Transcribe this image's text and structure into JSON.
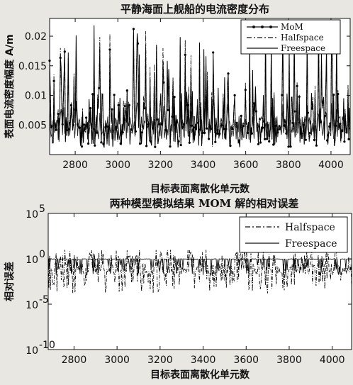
{
  "colors": {
    "background": "#e9e7e2",
    "plot_bg": "#ffffff",
    "ink": "#111111"
  },
  "chart_data": [
    {
      "type": "line",
      "title": "平静海面上舰船的电流密度分布",
      "xlabel": "目标表面离散化单元数",
      "ylabel": "表面电流密度幅度 A/m",
      "xlim": [
        2680,
        4090
      ],
      "ylim": [
        0,
        0.023
      ],
      "x_ticks": [
        2800,
        3000,
        3200,
        3400,
        3600,
        3800,
        4000
      ],
      "x_tick_labels": [
        "2800",
        "3000",
        "3200",
        "3400",
        "3600",
        "3800",
        "4000"
      ],
      "y_ticks": [
        0.005,
        0.01,
        0.015,
        0.02
      ],
      "y_tick_labels": [
        "0.005",
        "0.01",
        "0.015",
        "0.02"
      ],
      "legend_position": "top-right",
      "series": [
        {
          "name": "MoM",
          "style": "solid-dot",
          "range": [
            0.001,
            0.022
          ],
          "note_values": "dense oscillating signal, baseline ~0.004, peaks up to ~0.022"
        },
        {
          "name": "Halfspace",
          "style": "dash-dot",
          "range": [
            0.001,
            0.021
          ]
        },
        {
          "name": "Freespace",
          "style": "solid",
          "range": [
            0.001,
            0.012
          ]
        }
      ]
    },
    {
      "type": "line",
      "title": "两种模型模拟结果 MOM 解的相对误差",
      "xlabel": "目标表面离散化单元数",
      "ylabel": "相对误差",
      "xlim": [
        2680,
        4090
      ],
      "ylim_log10": [
        -10,
        5
      ],
      "y_scale": "log",
      "x_ticks": [
        2800,
        3000,
        3200,
        3400,
        3600,
        3800,
        4000
      ],
      "x_tick_labels": [
        "2800",
        "3000",
        "3200",
        "3400",
        "3600",
        "3800",
        "4000"
      ],
      "y_tick_exponents": [
        5,
        0,
        -5,
        -10
      ],
      "y_tick_base": "10",
      "y_tick_exps": [
        "5",
        "0",
        "-5",
        "-10"
      ],
      "legend_position": "top-right",
      "series": [
        {
          "name": "Halfspace",
          "style": "dash-dot",
          "log10_range": [
            -4,
            1
          ]
        },
        {
          "name": "Freespace",
          "style": "solid",
          "log10_range": [
            -2,
            0
          ]
        }
      ]
    }
  ]
}
